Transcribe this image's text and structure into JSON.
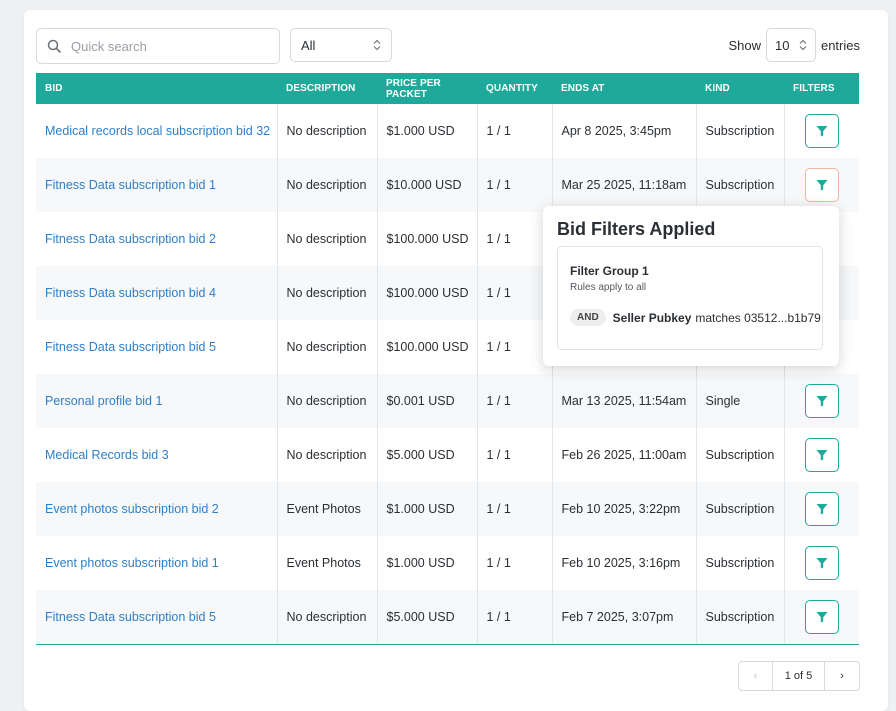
{
  "toolbar": {
    "search_placeholder": "Quick search",
    "kind_filter": "All",
    "show_label": "Show",
    "entries_value": "10",
    "entries_label": "entries"
  },
  "table": {
    "headers": [
      "BID",
      "DESCRIPTION",
      "PRICE PER PACKET",
      "QUANTITY",
      "ENDS AT",
      "KIND",
      "FILTERS"
    ],
    "rows": [
      {
        "bid": "Medical records local subscription bid 32",
        "description": "No description",
        "price": "$1.000 USD",
        "quantity": "1 / 1",
        "ends_at": "Apr 8 2025, 3:45pm",
        "kind": "Subscription"
      },
      {
        "bid": "Fitness Data subscription bid 1",
        "description": "No description",
        "price": "$10.000 USD",
        "quantity": "1 / 1",
        "ends_at": "Mar 25 2025, 11:18am",
        "kind": "Subscription"
      },
      {
        "bid": "Fitness Data subscription bid 2",
        "description": "No description",
        "price": "$100.000 USD",
        "quantity": "1 / 1",
        "ends_at": "",
        "kind": ""
      },
      {
        "bid": "Fitness Data subscription bid 4",
        "description": "No description",
        "price": "$100.000 USD",
        "quantity": "1 / 1",
        "ends_at": "",
        "kind": ""
      },
      {
        "bid": "Fitness Data subscription bid 5",
        "description": "No description",
        "price": "$100.000 USD",
        "quantity": "1 / 1",
        "ends_at": "",
        "kind": ""
      },
      {
        "bid": "Personal profile bid 1",
        "description": "No description",
        "price": "$0.001 USD",
        "quantity": "1 / 1",
        "ends_at": "Mar 13 2025, 11:54am",
        "kind": "Single"
      },
      {
        "bid": "Medical Records bid 3",
        "description": "No description",
        "price": "$5.000 USD",
        "quantity": "1 / 1",
        "ends_at": "Feb 26 2025, 11:00am",
        "kind": "Subscription"
      },
      {
        "bid": "Event photos subscription bid 2",
        "description": "Event Photos",
        "price": "$1.000 USD",
        "quantity": "1 / 1",
        "ends_at": "Feb 10 2025, 3:22pm",
        "kind": "Subscription"
      },
      {
        "bid": "Event photos subscription bid 1",
        "description": "Event Photos",
        "price": "$1.000 USD",
        "quantity": "1 / 1",
        "ends_at": "Feb 10 2025, 3:16pm",
        "kind": "Subscription"
      },
      {
        "bid": "Fitness Data subscription bid 5",
        "description": "No description",
        "price": "$5.000 USD",
        "quantity": "1 / 1",
        "ends_at": "Feb 7 2025, 3:07pm",
        "kind": "Subscription"
      }
    ]
  },
  "popover": {
    "title": "Bid Filters Applied",
    "group_title": "Filter Group 1",
    "group_subtitle": "Rules apply to all",
    "rule_operator": "AND",
    "rule_field": "Seller Pubkey",
    "rule_text": "matches 03512...b1b79"
  },
  "pagination": {
    "prev": "‹",
    "page_label": "1 of 5",
    "next": "›"
  },
  "colors": {
    "accent": "#1fa99a",
    "link": "#2f7fc6",
    "active_outline": "#f0b6a0"
  }
}
